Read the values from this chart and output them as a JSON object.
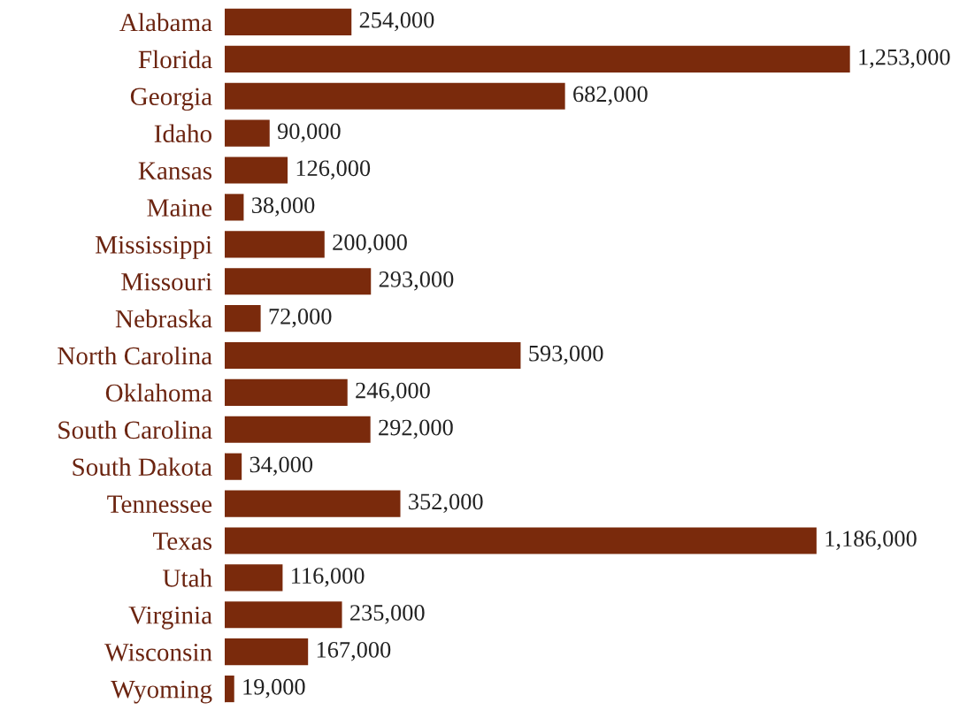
{
  "chart_data": {
    "type": "bar",
    "orientation": "horizontal",
    "grid": false,
    "color": "#7a2a0c",
    "value_labels": [
      "254,000",
      "1,253,000",
      "682,000",
      "90,000",
      "126,000",
      "38,000",
      "200,000",
      "293,000",
      "72,000",
      "593,000",
      "246,000",
      "292,000",
      "34,000",
      "352,000",
      "1,186,000",
      "116,000",
      "235,000",
      "167,000",
      "19,000"
    ],
    "categories": [
      "Alabama",
      "Florida",
      "Georgia",
      "Idaho",
      "Kansas",
      "Maine",
      "Mississippi",
      "Missouri",
      "Nebraska",
      "North Carolina",
      "Oklahoma",
      "South Carolina",
      "South Dakota",
      "Tennessee",
      "Texas",
      "Utah",
      "Virginia",
      "Wisconsin",
      "Wyoming"
    ],
    "values": [
      254000,
      1253000,
      682000,
      90000,
      126000,
      38000,
      200000,
      293000,
      72000,
      593000,
      246000,
      292000,
      34000,
      352000,
      1186000,
      116000,
      235000,
      167000,
      19000
    ]
  }
}
